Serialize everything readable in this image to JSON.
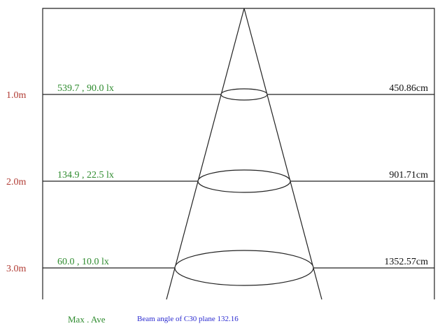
{
  "colors": {
    "distance_label": "#b03a32",
    "illuminance": "#2e8b2e",
    "diameter": "#111111",
    "footer_left": "#2e8b2e",
    "footer_right": "#2a2ad0",
    "line": "#222222"
  },
  "levels": [
    {
      "distance": "1.0m",
      "illuminance": "539.7 , 90.0 lx",
      "diameter": "450.86cm"
    },
    {
      "distance": "2.0m",
      "illuminance": "134.9 , 22.5 lx",
      "diameter": "901.71cm"
    },
    {
      "distance": "3.0m",
      "illuminance": "60.0 , 10.0 lx",
      "diameter": "1352.57cm"
    }
  ],
  "footer": {
    "legend": "Max . Ave",
    "beam_angle": "Beam angle of C30 plane 132.16"
  }
}
